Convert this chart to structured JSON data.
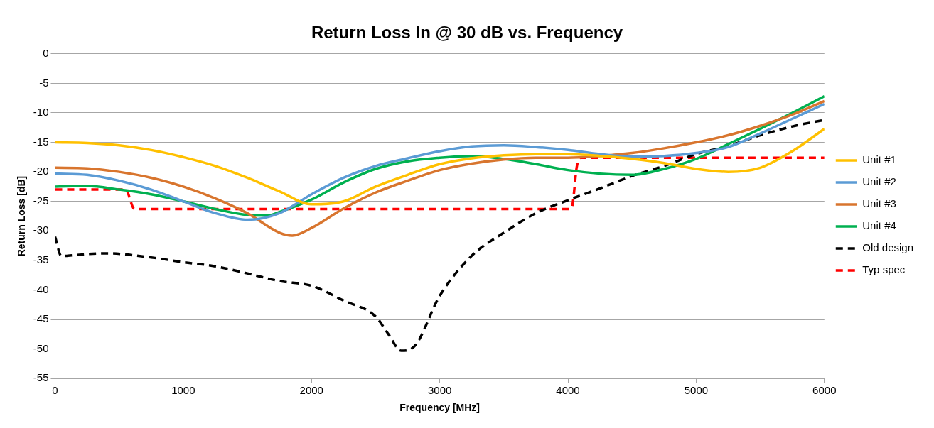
{
  "chart_data": {
    "type": "line",
    "title": "Return Loss In @ 30 dB vs. Frequency",
    "xlabel": "Frequency [MHz]",
    "ylabel": "Return Loss [dB]",
    "xlim": [
      0,
      6000
    ],
    "xticks": [
      0,
      1000,
      2000,
      3000,
      4000,
      5000,
      6000
    ],
    "ylim": [
      -55,
      0
    ],
    "yticks": [
      -55,
      -50,
      -45,
      -40,
      -35,
      -30,
      -25,
      -20,
      -15,
      -10,
      -5,
      0
    ],
    "grid": "y",
    "legend": "right",
    "marker": "none",
    "series": [
      {
        "name": "Unit #1",
        "color": "#ffc000",
        "line_style": "solid",
        "x": [
          0,
          250,
          500,
          750,
          1000,
          1250,
          1500,
          1750,
          2000,
          2250,
          2500,
          2750,
          3000,
          3250,
          3500,
          3750,
          4000,
          4250,
          4500,
          4750,
          5000,
          5250,
          5500,
          5750,
          6000
        ],
        "values": [
          -15,
          -15.1,
          -15.5,
          -16.3,
          -17.5,
          -19,
          -21,
          -23.3,
          -25.5,
          -25,
          -22.5,
          -20.5,
          -18.7,
          -17.7,
          -17.2,
          -17,
          -17,
          -17.3,
          -17.8,
          -18.5,
          -19.5,
          -20,
          -19.3,
          -16.5,
          -12.7
        ]
      },
      {
        "name": "Unit #2",
        "color": "#5b9bd5",
        "line_style": "solid",
        "x": [
          0,
          250,
          500,
          750,
          1000,
          1250,
          1500,
          1750,
          2000,
          2250,
          2500,
          2750,
          3000,
          3250,
          3500,
          3750,
          4000,
          4250,
          4500,
          4750,
          5000,
          5250,
          5500,
          5750,
          6000
        ],
        "values": [
          -20.3,
          -20.5,
          -21.5,
          -23,
          -25,
          -27,
          -28.1,
          -27,
          -23.8,
          -21,
          -19,
          -17.7,
          -16.5,
          -15.7,
          -15.5,
          -15.8,
          -16.3,
          -17,
          -17.4,
          -17.3,
          -16.8,
          -15.8,
          -13.5,
          -11,
          -8.5
        ]
      },
      {
        "name": "Unit #3",
        "color": "#d8752e",
        "line_style": "solid",
        "x": [
          0,
          250,
          500,
          750,
          1000,
          1250,
          1500,
          1750,
          1850,
          2000,
          2250,
          2500,
          2750,
          3000,
          3250,
          3500,
          3750,
          4000,
          4250,
          4500,
          4750,
          5000,
          5250,
          5500,
          5750,
          6000
        ],
        "values": [
          -19.3,
          -19.4,
          -20,
          -21,
          -22.5,
          -24.5,
          -27,
          -30.3,
          -30.8,
          -29.5,
          -26.2,
          -23.5,
          -21.5,
          -19.7,
          -18.6,
          -17.9,
          -17.6,
          -17.6,
          -17.3,
          -16.8,
          -16,
          -15,
          -13.8,
          -12.2,
          -10.3,
          -8
        ]
      },
      {
        "name": "Unit #4",
        "color": "#00b050",
        "line_style": "solid",
        "x": [
          0,
          250,
          500,
          750,
          1000,
          1250,
          1500,
          1650,
          1750,
          2000,
          2250,
          2500,
          2750,
          3000,
          3250,
          3500,
          3750,
          4000,
          4250,
          4500,
          4750,
          5000,
          5250,
          5500,
          5750,
          6000
        ],
        "values": [
          -22.5,
          -22.4,
          -23,
          -23.8,
          -25,
          -26.3,
          -27.3,
          -27.4,
          -26.8,
          -24.7,
          -21.8,
          -19.5,
          -18.2,
          -17.6,
          -17.3,
          -17.8,
          -18.7,
          -19.7,
          -20.3,
          -20.5,
          -19.5,
          -17.8,
          -15.3,
          -12.7,
          -10,
          -7.2
        ]
      },
      {
        "name": "Old design",
        "color": "#000000",
        "line_style": "dashed",
        "x": [
          0,
          50,
          100,
          400,
          750,
          1000,
          1250,
          1500,
          1750,
          2000,
          2250,
          2500,
          2600,
          2700,
          2800,
          3000,
          3250,
          3500,
          3750,
          4000,
          4250,
          4500,
          4750,
          5000,
          5250,
          5500,
          5750,
          6000
        ],
        "values": [
          -31,
          -34.3,
          -34.2,
          -33.8,
          -34.5,
          -35.3,
          -36,
          -37.2,
          -38.5,
          -39.3,
          -41.8,
          -44.5,
          -47.5,
          -50.3,
          -49.6,
          -41,
          -34.2,
          -30.3,
          -27,
          -24.8,
          -22.8,
          -20.7,
          -19,
          -17,
          -15.6,
          -13.8,
          -12.3,
          -11.2
        ]
      },
      {
        "name": "Typ spec",
        "color": "#ff0000",
        "line_style": "dashed",
        "x": [
          0,
          550,
          620,
          700,
          4000,
          4030,
          4070,
          4100,
          6000
        ],
        "values": [
          -23,
          -23,
          -26.3,
          -26.3,
          -26.3,
          -26,
          -19,
          -17.6,
          -17.6
        ]
      }
    ]
  }
}
